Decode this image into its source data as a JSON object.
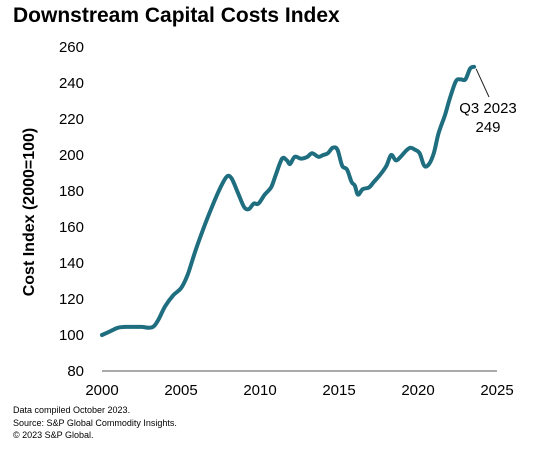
{
  "chart_data": {
    "type": "line",
    "title": "Downstream Capital Costs Index",
    "ylabel": "Cost Index (2000=100)",
    "xlabel": "",
    "xlim": [
      2000,
      2025
    ],
    "ylim": [
      80,
      260
    ],
    "x_ticks": [
      2000,
      2005,
      2010,
      2015,
      2020,
      2025
    ],
    "y_ticks": [
      80,
      100,
      120,
      140,
      160,
      180,
      200,
      220,
      240,
      260
    ],
    "grid": false,
    "line_color": "#1f6e80",
    "series": [
      {
        "points": [
          [
            2000.0,
            100
          ],
          [
            2000.5,
            102
          ],
          [
            2001.0,
            104
          ],
          [
            2001.5,
            104.5
          ],
          [
            2002.0,
            104.5
          ],
          [
            2002.5,
            104.5
          ],
          [
            2003.0,
            104
          ],
          [
            2003.3,
            105
          ],
          [
            2003.6,
            109
          ],
          [
            2004.0,
            116
          ],
          [
            2004.5,
            122
          ],
          [
            2005.0,
            126
          ],
          [
            2005.4,
            133
          ],
          [
            2005.7,
            141
          ],
          [
            2006.0,
            149
          ],
          [
            2006.5,
            161
          ],
          [
            2007.0,
            172
          ],
          [
            2007.5,
            182
          ],
          [
            2007.9,
            188
          ],
          [
            2008.2,
            187
          ],
          [
            2008.6,
            179
          ],
          [
            2009.0,
            171
          ],
          [
            2009.3,
            170
          ],
          [
            2009.6,
            173
          ],
          [
            2009.9,
            173
          ],
          [
            2010.3,
            178
          ],
          [
            2010.7,
            182
          ],
          [
            2011.0,
            189
          ],
          [
            2011.4,
            198
          ],
          [
            2011.7,
            197
          ],
          [
            2011.9,
            195
          ],
          [
            2012.2,
            199
          ],
          [
            2012.6,
            198
          ],
          [
            2013.0,
            199
          ],
          [
            2013.3,
            201
          ],
          [
            2013.7,
            199
          ],
          [
            2014.0,
            200
          ],
          [
            2014.3,
            201
          ],
          [
            2014.6,
            204
          ],
          [
            2014.9,
            203
          ],
          [
            2015.2,
            194
          ],
          [
            2015.5,
            192
          ],
          [
            2015.8,
            185
          ],
          [
            2016.0,
            183
          ],
          [
            2016.2,
            178
          ],
          [
            2016.5,
            181
          ],
          [
            2016.9,
            182
          ],
          [
            2017.2,
            185
          ],
          [
            2017.6,
            189
          ],
          [
            2018.0,
            194
          ],
          [
            2018.3,
            200
          ],
          [
            2018.6,
            197
          ],
          [
            2018.9,
            199
          ],
          [
            2019.2,
            202
          ],
          [
            2019.5,
            204
          ],
          [
            2019.8,
            203
          ],
          [
            2020.1,
            201
          ],
          [
            2020.4,
            194
          ],
          [
            2020.7,
            195
          ],
          [
            2021.0,
            201
          ],
          [
            2021.3,
            212
          ],
          [
            2021.7,
            222
          ],
          [
            2022.0,
            231
          ],
          [
            2022.4,
            241
          ],
          [
            2022.7,
            242
          ],
          [
            2023.0,
            242
          ],
          [
            2023.3,
            248
          ],
          [
            2023.55,
            249
          ]
        ]
      }
    ],
    "annotation": {
      "line1": "Q3 2023",
      "line2": "249",
      "x": 2023.55,
      "y": 249
    }
  },
  "footnotes": [
    "Data compiled October 2023.",
    "Source: S&P Global Commodity Insights.",
    "© 2023 S&P Global."
  ]
}
